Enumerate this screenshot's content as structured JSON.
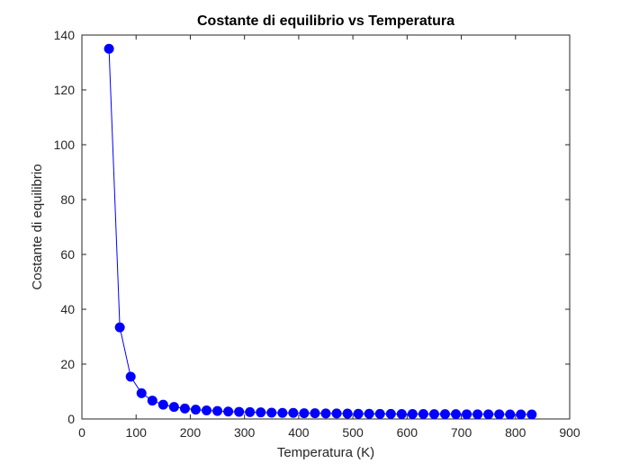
{
  "chart_data": {
    "type": "line",
    "title": "Costante di equilibrio vs Temperatura",
    "xlabel": "Temperatura (K)",
    "ylabel": "Costante di equilibrio",
    "xlim": [
      0,
      900
    ],
    "ylim": [
      0,
      140
    ],
    "xticks": [
      "0",
      "100",
      "200",
      "300",
      "400",
      "500",
      "600",
      "700",
      "800",
      "900"
    ],
    "yticks": [
      "0",
      "20",
      "40",
      "60",
      "80",
      "100",
      "120",
      "140"
    ],
    "grid": false,
    "series": [
      {
        "color": "#0000ff",
        "marker": "circle",
        "x": [
          50,
          70,
          90,
          110,
          130,
          150,
          170,
          190,
          210,
          230,
          250,
          270,
          290,
          310,
          330,
          350,
          370,
          390,
          410,
          430,
          450,
          470,
          490,
          510,
          530,
          550,
          570,
          590,
          610,
          630,
          650,
          670,
          690,
          710,
          730,
          750,
          770,
          790,
          810,
          830
        ],
        "y": [
          135,
          33.4,
          15.4,
          9.4,
          6.7,
          5.2,
          4.4,
          3.8,
          3.4,
          3.1,
          2.9,
          2.7,
          2.6,
          2.5,
          2.4,
          2.3,
          2.2,
          2.2,
          2.1,
          2.1,
          2.0,
          2.0,
          1.95,
          1.9,
          1.9,
          1.85,
          1.85,
          1.8,
          1.8,
          1.8,
          1.75,
          1.75,
          1.75,
          1.7,
          1.7,
          1.7,
          1.7,
          1.65,
          1.65,
          1.65
        ]
      }
    ]
  }
}
